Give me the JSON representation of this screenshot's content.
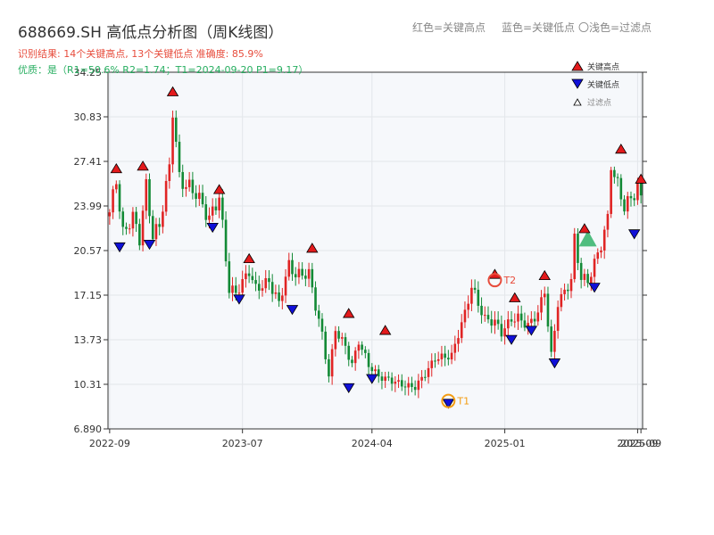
{
  "header": {
    "title": "688669.SH 高低点分析图（周K线图）",
    "result_text": "识别结果: 14个关键高点, 13个关键低点  准确度: 85.9%",
    "quality_text": "优质：是（R1=50.6%  R2=1.74；T1=2024-09-20 P1=9.17）",
    "legend_red": "红色=关键高点",
    "legend_blue": "蓝色=关键低点",
    "legend_light": "〇浅色=过滤点"
  },
  "side_legend": {
    "high": "关键高点",
    "low": "关键低点",
    "filtered": "过滤点"
  },
  "colors": {
    "up": "#e02424",
    "down": "#138a36",
    "high_marker": "#e31a1c",
    "low_marker": "#1010d8",
    "t_marker": "#e74c3c",
    "t1_marker": "#f39c12",
    "filtered": "#27ae60",
    "plot_bg": "#f6f8fb",
    "grid": "#e3e6ea"
  },
  "chart_data": {
    "type": "candlestick",
    "y_ticks": [
      "6.890",
      "10.31",
      "13.73",
      "17.15",
      "20.57",
      "23.99",
      "27.41",
      "30.83",
      "34.25"
    ],
    "ylim": [
      6.89,
      34.25
    ],
    "x_ticks": [
      {
        "label": "2022-09",
        "week": 0
      },
      {
        "label": "2023-07",
        "week": 40
      },
      {
        "label": "2024-04",
        "week": 79
      },
      {
        "label": "2025-01",
        "week": 119
      },
      {
        "label": "2025-09",
        "week": 159
      },
      {
        "label": "2025-09",
        "week": 160
      }
    ],
    "weeks": 161,
    "anchors": [
      [
        0,
        23.5
      ],
      [
        2,
        26
      ],
      [
        4,
        21.8
      ],
      [
        7,
        23.2
      ],
      [
        9,
        21.5
      ],
      [
        11,
        25.6
      ],
      [
        13,
        21.7
      ],
      [
        15,
        22.5
      ],
      [
        18,
        27
      ],
      [
        19,
        31.4
      ],
      [
        21,
        26
      ],
      [
        26,
        25
      ],
      [
        30,
        23
      ],
      [
        33,
        24.7
      ],
      [
        36,
        17.7
      ],
      [
        38,
        17.3
      ],
      [
        42,
        19
      ],
      [
        44,
        17.6
      ],
      [
        48,
        18.2
      ],
      [
        51,
        16.5
      ],
      [
        54,
        19.5
      ],
      [
        56,
        18.7
      ],
      [
        60,
        18.8
      ],
      [
        64,
        14
      ],
      [
        66,
        11
      ],
      [
        68,
        14.5
      ],
      [
        71,
        13.2
      ],
      [
        73,
        11.8
      ],
      [
        75,
        13.6
      ],
      [
        78,
        11.8
      ],
      [
        81,
        10.9
      ],
      [
        85,
        10.6
      ],
      [
        89,
        10.2
      ],
      [
        92,
        10.1
      ],
      [
        95,
        11.1
      ],
      [
        98,
        12.3
      ],
      [
        103,
        12.5
      ],
      [
        107,
        15.8
      ],
      [
        109,
        17.8
      ],
      [
        111,
        16.5
      ],
      [
        113,
        15.3
      ],
      [
        116,
        15.1
      ],
      [
        118,
        14.3
      ],
      [
        121,
        15.3
      ],
      [
        123,
        15.4
      ],
      [
        126,
        14.8
      ],
      [
        129,
        15.8
      ],
      [
        131,
        17.5
      ],
      [
        133,
        12.4
      ],
      [
        135,
        16.5
      ],
      [
        139,
        18.3
      ],
      [
        140,
        21.5
      ],
      [
        142,
        18.5
      ],
      [
        144,
        18.2
      ],
      [
        148,
        21
      ],
      [
        150,
        23
      ],
      [
        151,
        27.2
      ],
      [
        153,
        25.5
      ],
      [
        155,
        24
      ],
      [
        157,
        24.5
      ],
      [
        159,
        25.5
      ],
      [
        160,
        24.4
      ]
    ],
    "key_highs": [
      {
        "week": 2,
        "price": 26.4
      },
      {
        "week": 10,
        "price": 26.6
      },
      {
        "week": 19,
        "price": 32.3
      },
      {
        "week": 33,
        "price": 24.8
      },
      {
        "week": 42,
        "price": 19.5
      },
      {
        "week": 61,
        "price": 20.3
      },
      {
        "week": 72,
        "price": 15.3
      },
      {
        "week": 83,
        "price": 14
      },
      {
        "week": 116,
        "price": 18.3
      },
      {
        "week": 122,
        "price": 16.5
      },
      {
        "week": 131,
        "price": 18.2
      },
      {
        "week": 143,
        "price": 21.8
      },
      {
        "week": 154,
        "price": 27.9
      },
      {
        "week": 160,
        "price": 25.6
      }
    ],
    "key_lows": [
      {
        "week": 3,
        "price": 21.3
      },
      {
        "week": 12,
        "price": 21.5
      },
      {
        "week": 31,
        "price": 22.8
      },
      {
        "week": 39,
        "price": 17.3
      },
      {
        "week": 55,
        "price": 16.5
      },
      {
        "week": 72,
        "price": 10.5
      },
      {
        "week": 79,
        "price": 11.2
      },
      {
        "week": 102,
        "price": 9.3
      },
      {
        "week": 121,
        "price": 14.2
      },
      {
        "week": 127,
        "price": 14.9
      },
      {
        "week": 134,
        "price": 12.4
      },
      {
        "week": 146,
        "price": 18.2
      },
      {
        "week": 158,
        "price": 22.3
      }
    ],
    "filtered_points": [
      {
        "week": 144,
        "price": 21.3
      }
    ],
    "t_points": [
      {
        "label": "T1",
        "week": 102,
        "price": 9.17
      },
      {
        "label": "T2",
        "week": 116,
        "price": 18.3
      }
    ]
  }
}
